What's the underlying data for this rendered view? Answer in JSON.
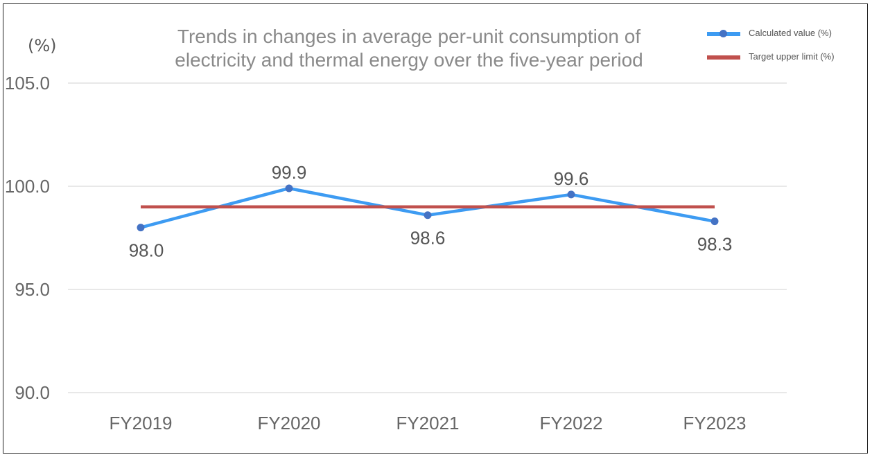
{
  "chart_data": {
    "type": "line",
    "title": "Trends in changes in average per-unit consumption of electricity and thermal energy over the five-year period",
    "ylabel": "(%)",
    "categories": [
      "FY2019",
      "FY2020",
      "FY2021",
      "FY2022",
      "FY2023"
    ],
    "ylim": [
      90.0,
      105.0
    ],
    "yticks": [
      "105.0",
      "100.0",
      "95.0",
      "90.0"
    ],
    "grid": true,
    "legend_placement": "top-right",
    "series": [
      {
        "name": "Calculated value (%)",
        "values": [
          98.0,
          99.9,
          98.6,
          99.6,
          98.3
        ],
        "labels": [
          "98.0",
          "99.9",
          "98.6",
          "99.6",
          "98.3"
        ],
        "color": "#3d9bf2",
        "marker_color": "#4472c4"
      },
      {
        "name": "Target upper limit (%)",
        "values": [
          99.0,
          99.0,
          99.0,
          99.0,
          99.0
        ],
        "color": "#c0504d"
      }
    ]
  }
}
